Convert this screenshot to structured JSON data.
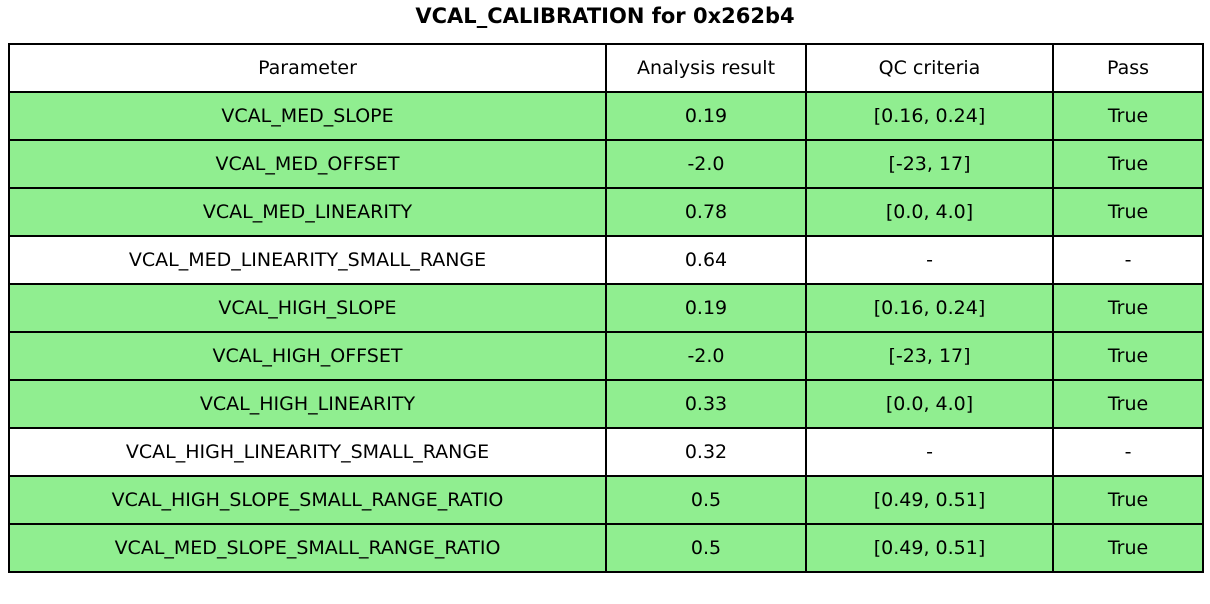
{
  "title": "VCAL_CALIBRATION for 0x262b4",
  "colors": {
    "pass_row": "#90EE90",
    "default_row": "#ffffff",
    "border": "#000000",
    "text": "#000000"
  },
  "chart_data": {
    "type": "table",
    "title": "VCAL_CALIBRATION for 0x262b4",
    "columns": [
      "Parameter",
      "Analysis result",
      "QC criteria",
      "Pass"
    ],
    "rows": [
      {
        "param": "VCAL_MED_SLOPE",
        "result": "0.19",
        "criteria": "[0.16, 0.24]",
        "pass": "True",
        "highlighted": true
      },
      {
        "param": "VCAL_MED_OFFSET",
        "result": "-2.0",
        "criteria": "[-23, 17]",
        "pass": "True",
        "highlighted": true
      },
      {
        "param": "VCAL_MED_LINEARITY",
        "result": "0.78",
        "criteria": "[0.0, 4.0]",
        "pass": "True",
        "highlighted": true
      },
      {
        "param": "VCAL_MED_LINEARITY_SMALL_RANGE",
        "result": "0.64",
        "criteria": "-",
        "pass": "-",
        "highlighted": false
      },
      {
        "param": "VCAL_HIGH_SLOPE",
        "result": "0.19",
        "criteria": "[0.16, 0.24]",
        "pass": "True",
        "highlighted": true
      },
      {
        "param": "VCAL_HIGH_OFFSET",
        "result": "-2.0",
        "criteria": "[-23, 17]",
        "pass": "True",
        "highlighted": true
      },
      {
        "param": "VCAL_HIGH_LINEARITY",
        "result": "0.33",
        "criteria": "[0.0, 4.0]",
        "pass": "True",
        "highlighted": true
      },
      {
        "param": "VCAL_HIGH_LINEARITY_SMALL_RANGE",
        "result": "0.32",
        "criteria": "-",
        "pass": "-",
        "highlighted": false
      },
      {
        "param": "VCAL_HIGH_SLOPE_SMALL_RANGE_RATIO",
        "result": "0.5",
        "criteria": "[0.49, 0.51]",
        "pass": "True",
        "highlighted": true
      },
      {
        "param": "VCAL_MED_SLOPE_SMALL_RANGE_RATIO",
        "result": "0.5",
        "criteria": "[0.49, 0.51]",
        "pass": "True",
        "highlighted": true
      }
    ]
  }
}
